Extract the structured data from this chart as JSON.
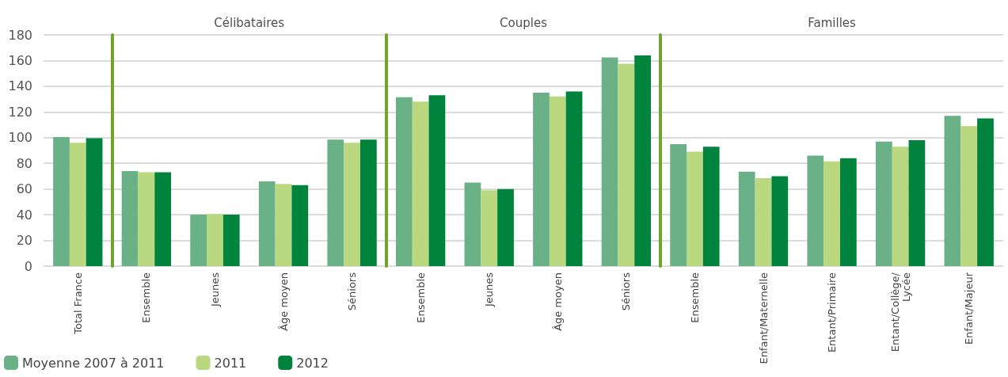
{
  "chart_data": {
    "type": "bar",
    "categories": [
      "Total France",
      "Ensemble",
      "Jeunes",
      "Âge moyen",
      "Séniors",
      "Ensemble",
      "Jeunes",
      "Âge moyen",
      "Séniors",
      "Ensemble",
      "Enfant/Maternelle",
      "Entant/Primaire",
      "Entant/Collège/\nLycée",
      "Enfant/Majeur"
    ],
    "series": [
      {
        "name": "Moyenne 2007 à 2011",
        "color": "#6ab187",
        "values": [
          100.5,
          74,
          40,
          66,
          98.5,
          131.5,
          65,
          135,
          162.5,
          95,
          73.5,
          86,
          97,
          117
        ]
      },
      {
        "name": "2011",
        "color": "#b9d87f",
        "values": [
          96,
          73,
          40.5,
          64,
          96,
          128,
          59,
          132,
          157.5,
          89,
          68.5,
          81.5,
          93,
          109
        ]
      },
      {
        "name": "2012",
        "color": "#00843d",
        "values": [
          99.5,
          73,
          40,
          63,
          98.5,
          133,
          60,
          136,
          164,
          93,
          70,
          84,
          98,
          115
        ]
      }
    ],
    "ylim": [
      0,
      180
    ],
    "yticks": [
      0,
      20,
      40,
      60,
      80,
      100,
      120,
      140,
      160,
      180
    ],
    "grid": "y",
    "legend": "bottom left",
    "annotations": [
      "Célibataires",
      "Couples",
      "Familles"
    ]
  }
}
